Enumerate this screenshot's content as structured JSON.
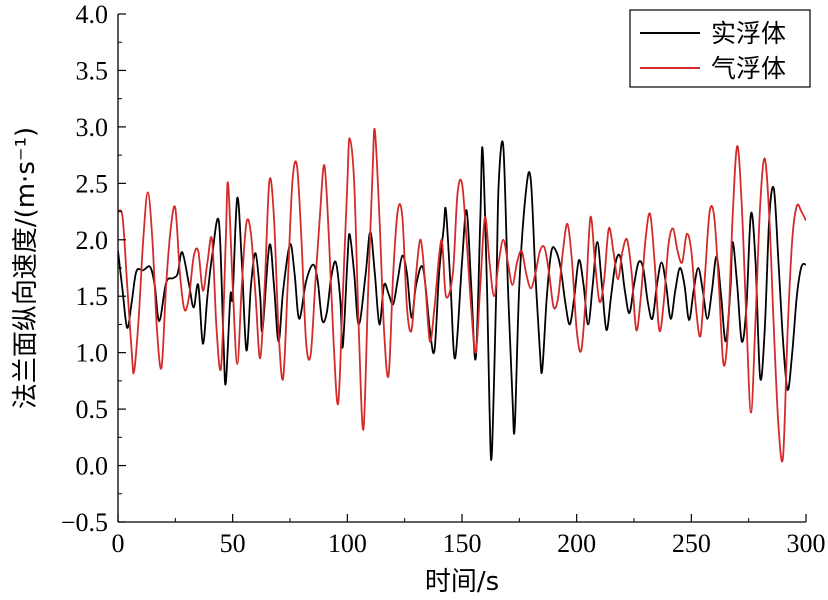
{
  "chart_data": {
    "type": "line",
    "xlabel": "时间/s",
    "ylabel": "法兰面纵向速度/(m·s⁻¹)",
    "xlim": [
      0,
      300
    ],
    "ylim": [
      -0.5,
      4.0
    ],
    "xticks": [
      0,
      50,
      100,
      150,
      200,
      250,
      300
    ],
    "yticks": [
      -0.5,
      0.0,
      0.5,
      1.0,
      1.5,
      2.0,
      2.5,
      3.0,
      3.5,
      4.0
    ],
    "xtick_labels": [
      "0",
      "50",
      "100",
      "150",
      "200",
      "250",
      "300"
    ],
    "ytick_labels": [
      "−0.5",
      "0.0",
      "0.5",
      "1.0",
      "1.5",
      "2.0",
      "2.5",
      "3.0",
      "3.5",
      "4.0"
    ],
    "grid": false,
    "legend_position": "top-right",
    "series": [
      {
        "name": "实浮体",
        "color": "#000000",
        "points": [
          [
            0,
            1.9
          ],
          [
            2,
            1.55
          ],
          [
            4,
            1.22
          ],
          [
            6,
            1.45
          ],
          [
            8,
            1.72
          ],
          [
            11,
            1.73
          ],
          [
            14,
            1.76
          ],
          [
            16,
            1.6
          ],
          [
            18,
            1.28
          ],
          [
            21,
            1.62
          ],
          [
            24,
            1.66
          ],
          [
            26,
            1.7
          ],
          [
            28,
            1.89
          ],
          [
            31,
            1.6
          ],
          [
            33,
            1.4
          ],
          [
            35,
            1.6
          ],
          [
            37,
            1.08
          ],
          [
            39,
            1.5
          ],
          [
            41,
            1.85
          ],
          [
            44,
            2.16
          ],
          [
            46,
            1.1
          ],
          [
            47,
            0.73
          ],
          [
            49,
            1.5
          ],
          [
            50,
            1.5
          ],
          [
            52,
            2.37
          ],
          [
            54,
            1.8
          ],
          [
            56,
            1.02
          ],
          [
            58,
            1.6
          ],
          [
            60,
            1.88
          ],
          [
            62,
            1.5
          ],
          [
            63,
            1.2
          ],
          [
            66,
            1.95
          ],
          [
            68,
            1.6
          ],
          [
            70,
            1.1
          ],
          [
            72,
            1.55
          ],
          [
            75,
            1.96
          ],
          [
            77,
            1.7
          ],
          [
            79,
            1.3
          ],
          [
            82,
            1.63
          ],
          [
            85,
            1.78
          ],
          [
            87,
            1.65
          ],
          [
            89,
            1.29
          ],
          [
            91,
            1.35
          ],
          [
            93,
            1.67
          ],
          [
            95,
            1.8
          ],
          [
            97,
            1.45
          ],
          [
            98,
            1.05
          ],
          [
            100,
            1.8
          ],
          [
            101,
            2.05
          ],
          [
            103,
            1.7
          ],
          [
            105,
            1.25
          ],
          [
            108,
            1.7
          ],
          [
            110,
            2.07
          ],
          [
            112,
            1.7
          ],
          [
            114,
            1.25
          ],
          [
            116,
            1.6
          ],
          [
            118,
            1.52
          ],
          [
            120,
            1.43
          ],
          [
            122,
            1.65
          ],
          [
            124,
            1.86
          ],
          [
            126,
            1.7
          ],
          [
            128,
            1.31
          ],
          [
            130,
            1.6
          ],
          [
            133,
            1.75
          ],
          [
            136,
            1.2
          ],
          [
            138,
            1.02
          ],
          [
            140,
            1.7
          ],
          [
            142,
            2.1
          ],
          [
            143,
            2.26
          ],
          [
            145,
            1.6
          ],
          [
            147,
            0.95
          ],
          [
            150,
            1.8
          ],
          [
            152,
            2.26
          ],
          [
            154,
            1.6
          ],
          [
            156,
            0.95
          ],
          [
            158,
            2.2
          ],
          [
            159,
            2.8
          ],
          [
            161,
            1.5
          ],
          [
            162,
            0.5
          ],
          [
            163,
            0.1
          ],
          [
            165,
            1.6
          ],
          [
            166,
            2.5
          ],
          [
            168,
            2.83
          ],
          [
            170,
            1.6
          ],
          [
            172,
            0.6
          ],
          [
            173,
            0.34
          ],
          [
            175,
            1.6
          ],
          [
            178,
            2.45
          ],
          [
            180,
            2.53
          ],
          [
            182,
            1.7
          ],
          [
            184,
            1.0
          ],
          [
            185,
            0.85
          ],
          [
            187,
            1.5
          ],
          [
            189,
            1.9
          ],
          [
            191,
            1.9
          ],
          [
            193,
            1.75
          ],
          [
            195,
            1.45
          ],
          [
            197,
            1.25
          ],
          [
            199,
            1.5
          ],
          [
            201,
            1.82
          ],
          [
            203,
            1.6
          ],
          [
            205,
            1.25
          ],
          [
            207,
            1.6
          ],
          [
            209,
            1.98
          ],
          [
            211,
            1.6
          ],
          [
            213,
            1.2
          ],
          [
            215,
            1.5
          ],
          [
            217,
            1.8
          ],
          [
            219,
            1.85
          ],
          [
            221,
            1.55
          ],
          [
            223,
            1.35
          ],
          [
            225,
            1.6
          ],
          [
            227,
            1.8
          ],
          [
            229,
            1.75
          ],
          [
            231,
            1.45
          ],
          [
            233,
            1.3
          ],
          [
            235,
            1.6
          ],
          [
            237,
            1.8
          ],
          [
            239,
            1.6
          ],
          [
            241,
            1.3
          ],
          [
            243,
            1.55
          ],
          [
            245,
            1.75
          ],
          [
            247,
            1.6
          ],
          [
            249,
            1.29
          ],
          [
            251,
            1.55
          ],
          [
            253,
            1.75
          ],
          [
            255,
            1.55
          ],
          [
            257,
            1.3
          ],
          [
            259,
            1.55
          ],
          [
            261,
            1.85
          ],
          [
            263,
            1.5
          ],
          [
            265,
            1.1
          ],
          [
            267,
            1.55
          ],
          [
            268,
            1.98
          ],
          [
            270,
            1.6
          ],
          [
            272,
            1.1
          ],
          [
            274,
            1.4
          ],
          [
            276,
            2.23
          ],
          [
            278,
            1.8
          ],
          [
            280,
            0.78
          ],
          [
            282,
            1.2
          ],
          [
            284,
            2.2
          ],
          [
            286,
            2.45
          ],
          [
            288,
            1.8
          ],
          [
            290,
            1.1
          ],
          [
            292,
            0.67
          ],
          [
            294,
            1.0
          ],
          [
            296,
            1.5
          ],
          [
            298,
            1.76
          ],
          [
            300,
            1.78
          ]
        ]
      },
      {
        "name": "气浮体",
        "color": "#d42a2a",
        "points": [
          [
            0,
            2.25
          ],
          [
            2,
            2.2
          ],
          [
            4,
            1.6
          ],
          [
            6,
            1.0
          ],
          [
            7,
            0.83
          ],
          [
            9,
            1.3
          ],
          [
            11,
            2.0
          ],
          [
            13,
            2.42
          ],
          [
            15,
            2.0
          ],
          [
            17,
            1.2
          ],
          [
            19,
            0.87
          ],
          [
            21,
            1.6
          ],
          [
            23,
            2.1
          ],
          [
            25,
            2.28
          ],
          [
            27,
            1.7
          ],
          [
            29,
            1.38
          ],
          [
            31,
            1.5
          ],
          [
            33,
            1.85
          ],
          [
            35,
            1.9
          ],
          [
            37,
            1.55
          ],
          [
            39,
            1.8
          ],
          [
            41,
            2.0
          ],
          [
            43,
            1.2
          ],
          [
            45,
            0.88
          ],
          [
            47,
            2.0
          ],
          [
            48,
            2.5
          ],
          [
            50,
            1.6
          ],
          [
            52,
            0.9
          ],
          [
            54,
            1.6
          ],
          [
            56,
            2.15
          ],
          [
            58,
            2.05
          ],
          [
            60,
            1.5
          ],
          [
            62,
            0.95
          ],
          [
            64,
            1.6
          ],
          [
            66,
            2.52
          ],
          [
            68,
            2.2
          ],
          [
            70,
            1.2
          ],
          [
            72,
            0.77
          ],
          [
            74,
            1.6
          ],
          [
            76,
            2.5
          ],
          [
            78,
            2.66
          ],
          [
            80,
            2.0
          ],
          [
            82,
            1.1
          ],
          [
            84,
            0.98
          ],
          [
            86,
            1.6
          ],
          [
            88,
            2.2
          ],
          [
            90,
            2.66
          ],
          [
            92,
            2.0
          ],
          [
            94,
            1.1
          ],
          [
            96,
            0.55
          ],
          [
            98,
            1.5
          ],
          [
            100,
            2.5
          ],
          [
            101,
            2.9
          ],
          [
            103,
            2.5
          ],
          [
            105,
            1.2
          ],
          [
            107,
            0.32
          ],
          [
            109,
            1.5
          ],
          [
            111,
            2.6
          ],
          [
            112,
            2.97
          ],
          [
            114,
            2.2
          ],
          [
            116,
            1.2
          ],
          [
            118,
            0.8
          ],
          [
            120,
            1.7
          ],
          [
            122,
            2.26
          ],
          [
            124,
            2.2
          ],
          [
            126,
            1.4
          ],
          [
            128,
            1.2
          ],
          [
            130,
            1.7
          ],
          [
            132,
            2.0
          ],
          [
            134,
            1.6
          ],
          [
            136,
            1.1
          ],
          [
            138,
            1.4
          ],
          [
            141,
            2.0
          ],
          [
            143,
            1.5
          ],
          [
            146,
            1.7
          ],
          [
            148,
            2.4
          ],
          [
            150,
            2.5
          ],
          [
            152,
            2.0
          ],
          [
            154,
            1.4
          ],
          [
            156,
            1.0
          ],
          [
            158,
            1.6
          ],
          [
            160,
            2.2
          ],
          [
            162,
            1.8
          ],
          [
            164,
            1.5
          ],
          [
            166,
            1.8
          ],
          [
            168,
            2.0
          ],
          [
            170,
            1.8
          ],
          [
            172,
            1.6
          ],
          [
            174,
            1.8
          ],
          [
            176,
            1.9
          ],
          [
            178,
            1.7
          ],
          [
            180,
            1.57
          ],
          [
            182,
            1.7
          ],
          [
            184,
            1.9
          ],
          [
            186,
            1.93
          ],
          [
            188,
            1.7
          ],
          [
            190,
            1.4
          ],
          [
            192,
            1.5
          ],
          [
            194,
            1.9
          ],
          [
            196,
            2.14
          ],
          [
            198,
            1.8
          ],
          [
            200,
            1.2
          ],
          [
            202,
            1.02
          ],
          [
            204,
            1.5
          ],
          [
            206,
            2.2
          ],
          [
            208,
            1.8
          ],
          [
            210,
            1.45
          ],
          [
            212,
            1.65
          ],
          [
            214,
            2.1
          ],
          [
            216,
            1.9
          ],
          [
            218,
            1.65
          ],
          [
            220,
            1.9
          ],
          [
            222,
            2.0
          ],
          [
            224,
            1.7
          ],
          [
            226,
            1.2
          ],
          [
            228,
            1.5
          ],
          [
            230,
            2.0
          ],
          [
            232,
            2.23
          ],
          [
            234,
            1.8
          ],
          [
            236,
            1.2
          ],
          [
            238,
            1.45
          ],
          [
            240,
            1.95
          ],
          [
            242,
            2.1
          ],
          [
            244,
            1.9
          ],
          [
            246,
            1.8
          ],
          [
            248,
            2.05
          ],
          [
            250,
            1.9
          ],
          [
            252,
            1.4
          ],
          [
            254,
            1.15
          ],
          [
            256,
            1.7
          ],
          [
            258,
            2.25
          ],
          [
            260,
            2.2
          ],
          [
            262,
            1.6
          ],
          [
            264,
            0.9
          ],
          [
            266,
            1.2
          ],
          [
            268,
            2.2
          ],
          [
            270,
            2.83
          ],
          [
            272,
            2.3
          ],
          [
            274,
            1.3
          ],
          [
            276,
            0.47
          ],
          [
            278,
            1.3
          ],
          [
            280,
            2.3
          ],
          [
            282,
            2.72
          ],
          [
            284,
            2.2
          ],
          [
            286,
            1.2
          ],
          [
            288,
            0.35
          ],
          [
            290,
            0.08
          ],
          [
            292,
            1.2
          ],
          [
            294,
            2.0
          ],
          [
            296,
            2.3
          ],
          [
            298,
            2.25
          ],
          [
            300,
            2.17
          ]
        ]
      }
    ]
  }
}
